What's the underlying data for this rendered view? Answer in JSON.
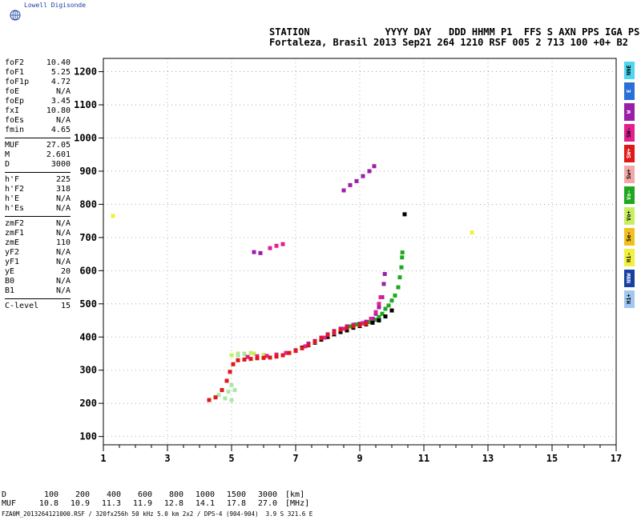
{
  "brand": {
    "name": "Lowell Digisonde",
    "icon": "globe-icon"
  },
  "header": {
    "line1": "STATION             YYYY DAY   DDD HHMM P1  FFS S AXN PPS IGA PS",
    "line2": "Fortaleza, Brasil 2013 Sep21 264 1210 RSF 005 2 713 100 +0+ B2"
  },
  "params": [
    {
      "group": [
        {
          "k": "foF2",
          "v": "10.40"
        },
        {
          "k": "foF1",
          "v": "5.25"
        },
        {
          "k": "foF1p",
          "v": "4.72"
        },
        {
          "k": "foE",
          "v": "N/A"
        },
        {
          "k": "foEp",
          "v": "3.45"
        },
        {
          "k": "fxI",
          "v": "10.80"
        },
        {
          "k": "foEs",
          "v": "N/A"
        },
        {
          "k": "fmin",
          "v": "4.65"
        }
      ]
    },
    {
      "group": [
        {
          "k": "MUF",
          "v": "27.05"
        },
        {
          "k": "M",
          "v": "2.601"
        },
        {
          "k": "D",
          "v": "3000"
        }
      ]
    },
    {
      "group": [
        {
          "k": "h'F",
          "v": "225"
        },
        {
          "k": "h'F2",
          "v": "318"
        },
        {
          "k": "h'E",
          "v": "N/A"
        },
        {
          "k": "h'Es",
          "v": "N/A"
        }
      ]
    },
    {
      "group": [
        {
          "k": "zmF2",
          "v": "N/A"
        },
        {
          "k": "zmF1",
          "v": "N/A"
        },
        {
          "k": "zmE",
          "v": "110"
        },
        {
          "k": "yF2",
          "v": "N/A"
        },
        {
          "k": "yF1",
          "v": "N/A"
        },
        {
          "k": "yE",
          "v": "20"
        },
        {
          "k": "B0",
          "v": "N/A"
        },
        {
          "k": "B1",
          "v": "N/A"
        }
      ]
    },
    {
      "group": [
        {
          "k": "C-level",
          "v": "15"
        }
      ]
    }
  ],
  "legend": [
    {
      "label": "NNE",
      "color": "#4fd6f0"
    },
    {
      "label": "E",
      "color": "#2a6fd8"
    },
    {
      "label": "W",
      "color": "#9a1fa8"
    },
    {
      "label": "SW-",
      "color": "#e02090"
    },
    {
      "label": "SW+",
      "color": "#e01818"
    },
    {
      "label": "Sw+",
      "color": "#f0a8a8"
    },
    {
      "label": "Vo-",
      "color": "#1fa81f"
    },
    {
      "label": "Vo+",
      "color": "#c8ee60"
    },
    {
      "label": "Se-",
      "color": "#f0c020"
    },
    {
      "label": "Hi-",
      "color": "#f0f040"
    },
    {
      "label": "NNW",
      "color": "#1840a0"
    },
    {
      "label": "Hi+",
      "color": "#a0c8f0"
    }
  ],
  "muf_table": {
    "d_label": "D",
    "d_values": [
      "100",
      "200",
      "400",
      "600",
      "800",
      "1000",
      "1500",
      "3000"
    ],
    "d_unit": "[km]",
    "muf_label": "MUF",
    "muf_values": [
      "10.8",
      "10.9",
      "11.3",
      "11.9",
      "12.8",
      "14.1",
      "17.8",
      "27.0"
    ],
    "muf_unit": "[MHz]"
  },
  "footer": "FZA0M_2013264121000.RSF / 320fx256h 50 kHz 5.0 km 2x2 / DPS-4 (904-904)  3.9 S 321.6 E",
  "chart_data": {
    "type": "scatter",
    "xlabel": "",
    "ylabel": "",
    "xlim": [
      1,
      17
    ],
    "ylim": [
      75,
      1240
    ],
    "x_ticks": [
      1,
      3,
      5,
      7,
      9,
      11,
      13,
      15,
      17
    ],
    "y_ticks": [
      100,
      200,
      300,
      400,
      500,
      600,
      700,
      800,
      900,
      1000,
      1100,
      1200
    ],
    "grid": true,
    "series": [
      {
        "color": "#c8ee60",
        "points": [
          [
            5.0,
            345
          ],
          [
            5.2,
            350
          ],
          [
            5.4,
            348
          ],
          [
            5.7,
            350
          ],
          [
            6.0,
            346
          ],
          [
            5.6,
            352
          ]
        ]
      },
      {
        "color": "#a8e8a8",
        "points": [
          [
            4.6,
            225
          ],
          [
            4.8,
            215
          ],
          [
            4.9,
            235
          ],
          [
            5.0,
            210
          ],
          [
            5.1,
            240
          ],
          [
            5.0,
            255
          ],
          [
            5.2,
            345
          ],
          [
            5.4,
            350
          ]
        ]
      },
      {
        "color": "#1fa81f",
        "points": [
          [
            8.7,
            432
          ],
          [
            8.9,
            438
          ],
          [
            9.1,
            441
          ],
          [
            9.3,
            445
          ],
          [
            9.5,
            452
          ],
          [
            9.6,
            460
          ],
          [
            9.7,
            470
          ],
          [
            9.8,
            485
          ],
          [
            9.9,
            495
          ],
          [
            10.0,
            510
          ],
          [
            10.1,
            525
          ],
          [
            10.2,
            550
          ],
          [
            10.25,
            580
          ],
          [
            10.3,
            610
          ],
          [
            10.32,
            640
          ],
          [
            10.33,
            655
          ]
        ]
      },
      {
        "color": "#000000",
        "points": [
          [
            7.0,
            360
          ],
          [
            7.2,
            368
          ],
          [
            7.4,
            375
          ],
          [
            7.6,
            383
          ],
          [
            7.8,
            392
          ],
          [
            8.0,
            400
          ],
          [
            8.2,
            408
          ],
          [
            8.4,
            415
          ],
          [
            8.6,
            420
          ],
          [
            8.8,
            428
          ],
          [
            9.0,
            433
          ],
          [
            9.2,
            438
          ],
          [
            9.4,
            443
          ],
          [
            9.6,
            450
          ],
          [
            9.8,
            462
          ],
          [
            10.0,
            480
          ],
          [
            10.4,
            770
          ]
        ]
      },
      {
        "color": "#9a1fa8",
        "points": [
          [
            7.4,
            380
          ],
          [
            7.6,
            388
          ],
          [
            7.8,
            398
          ],
          [
            8.0,
            408
          ],
          [
            8.2,
            418
          ],
          [
            8.4,
            425
          ],
          [
            8.6,
            432
          ],
          [
            8.8,
            437
          ],
          [
            9.0,
            440
          ],
          [
            9.2,
            446
          ],
          [
            9.4,
            455
          ],
          [
            9.5,
            470
          ],
          [
            9.6,
            490
          ],
          [
            9.7,
            520
          ],
          [
            9.75,
            560
          ],
          [
            9.78,
            590
          ],
          [
            8.5,
            842
          ],
          [
            8.7,
            858
          ],
          [
            8.9,
            870
          ],
          [
            9.1,
            885
          ],
          [
            9.3,
            900
          ],
          [
            9.45,
            915
          ],
          [
            5.7,
            656
          ],
          [
            5.9,
            653
          ]
        ]
      },
      {
        "color": "#e02090",
        "points": [
          [
            5.5,
            340
          ],
          [
            5.8,
            342
          ],
          [
            6.1,
            343
          ],
          [
            6.4,
            347
          ],
          [
            6.7,
            352
          ],
          [
            7.0,
            360
          ],
          [
            7.3,
            372
          ],
          [
            7.6,
            385
          ],
          [
            7.9,
            398
          ],
          [
            8.2,
            412
          ],
          [
            8.5,
            425
          ],
          [
            8.8,
            435
          ],
          [
            9.1,
            442
          ],
          [
            9.35,
            455
          ],
          [
            9.5,
            475
          ],
          [
            9.6,
            500
          ],
          [
            9.65,
            520
          ],
          [
            6.2,
            668
          ],
          [
            6.4,
            675
          ],
          [
            6.6,
            680
          ]
        ]
      },
      {
        "color": "#e01818",
        "points": [
          [
            4.3,
            210
          ],
          [
            4.5,
            218
          ],
          [
            4.7,
            240
          ],
          [
            4.85,
            268
          ],
          [
            4.95,
            295
          ],
          [
            5.05,
            318
          ],
          [
            5.2,
            330
          ],
          [
            5.4,
            332
          ],
          [
            5.6,
            334
          ],
          [
            5.8,
            336
          ],
          [
            6.0,
            337
          ],
          [
            6.2,
            338
          ],
          [
            6.4,
            341
          ],
          [
            6.6,
            345
          ],
          [
            6.8,
            352
          ],
          [
            7.0,
            358
          ],
          [
            7.2,
            366
          ],
          [
            7.4,
            376
          ],
          [
            7.6,
            386
          ],
          [
            7.8,
            396
          ],
          [
            8.0,
            406
          ],
          [
            8.2,
            415
          ],
          [
            8.4,
            422
          ],
          [
            8.6,
            428
          ],
          [
            8.8,
            432
          ],
          [
            9.0,
            436
          ],
          [
            9.2,
            440
          ]
        ]
      },
      {
        "color": "#f0f040",
        "points": [
          [
            1.3,
            765
          ],
          [
            12.5,
            715
          ]
        ]
      }
    ]
  }
}
